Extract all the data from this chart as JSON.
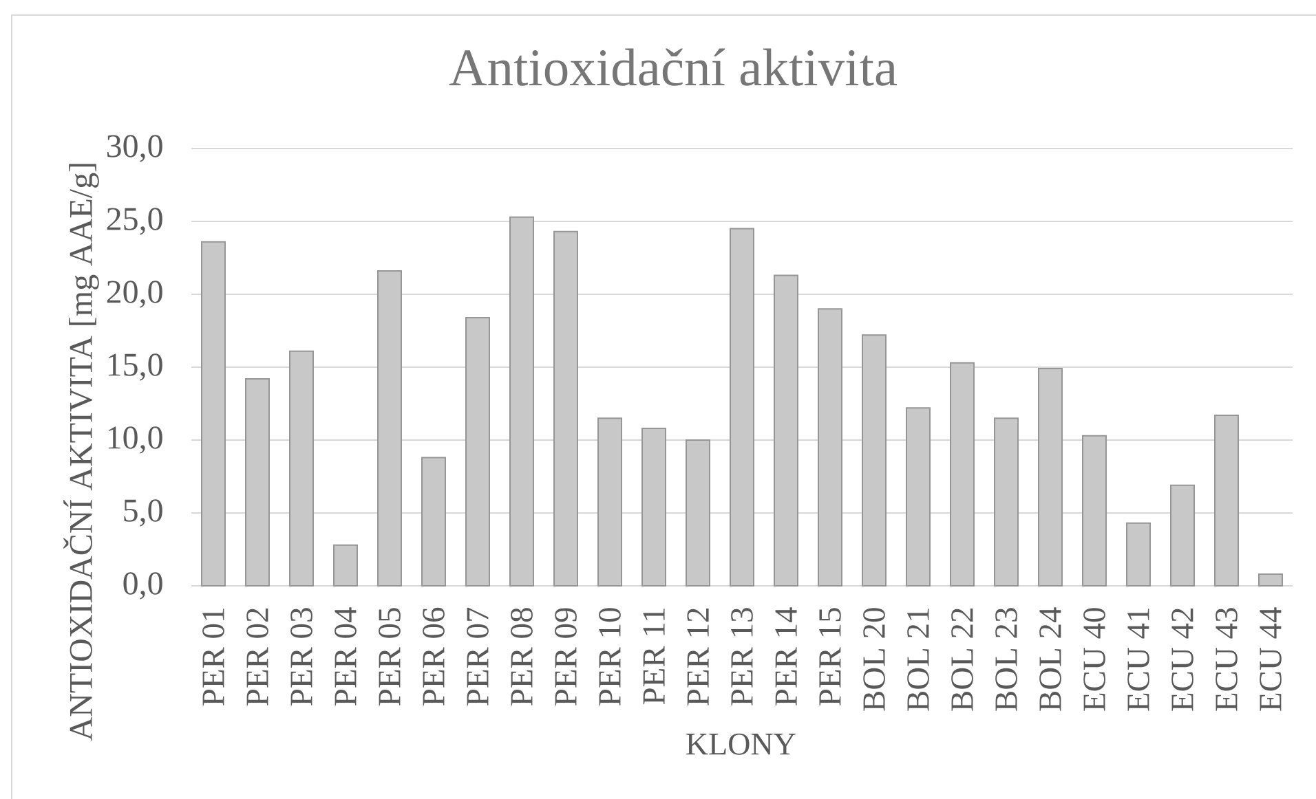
{
  "chart_data": {
    "type": "bar",
    "title": "Antioxidační aktivita",
    "xlabel": "KLONY",
    "ylabel": "ANTIOXIDAČNÍ AKTIVITA [mg AAE/g]",
    "categories": [
      "PER 01",
      "PER 02",
      "PER 03",
      "PER 04",
      "PER 05",
      "PER 06",
      "PER 07",
      "PER 08",
      "PER 09",
      "PER 10",
      "PER 11",
      "PER 12",
      "PER 13",
      "PER 14",
      "PER 15",
      "BOL 20",
      "BOL 21",
      "BOL 22",
      "BOL 23",
      "BOL 24",
      "ECU 40",
      "ECU 41",
      "ECU 42",
      "ECU 43",
      "ECU 44"
    ],
    "values": [
      23.6,
      14.2,
      16.1,
      2.8,
      21.6,
      8.8,
      18.4,
      25.3,
      24.3,
      11.5,
      10.8,
      10.0,
      24.5,
      21.3,
      19.0,
      17.2,
      12.2,
      15.3,
      11.5,
      14.9,
      10.3,
      4.3,
      6.9,
      11.7,
      0.8
    ],
    "color": "#c8c8c8",
    "ylim": [
      0,
      30
    ],
    "yticks": [
      {
        "value": 0,
        "label": "0,0"
      },
      {
        "value": 5,
        "label": "5,0"
      },
      {
        "value": 10,
        "label": "10,0"
      },
      {
        "value": 15,
        "label": "15,0"
      },
      {
        "value": 20,
        "label": "20,0"
      },
      {
        "value": 25,
        "label": "25,0"
      },
      {
        "value": 30,
        "label": "30,0"
      }
    ],
    "grid": "y"
  }
}
